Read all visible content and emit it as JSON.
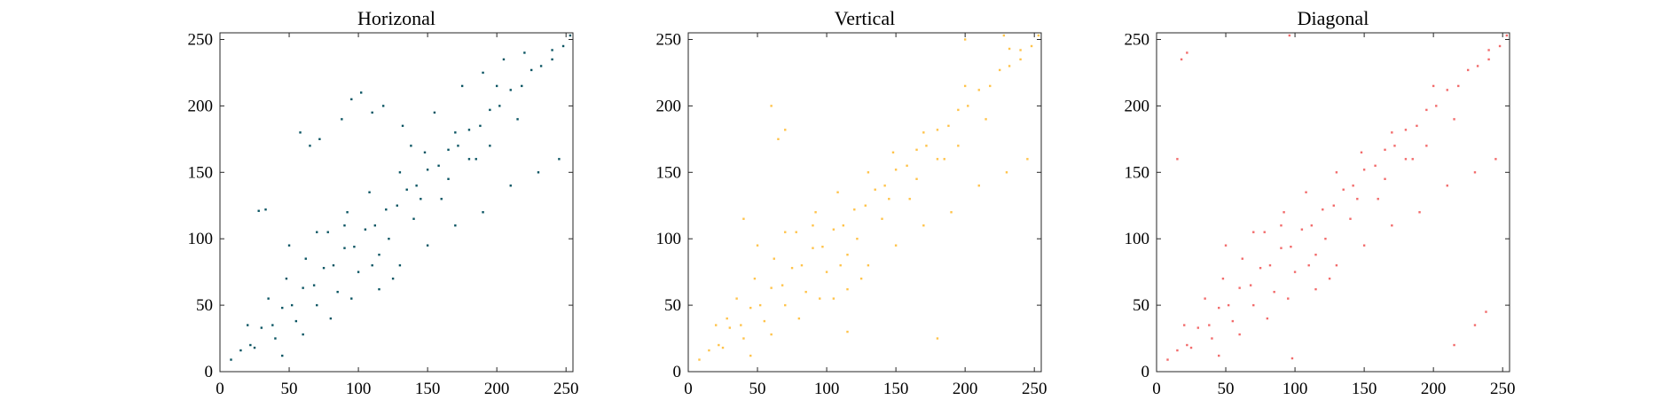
{
  "chart_data": [
    {
      "type": "scatter",
      "title": "Horizonal",
      "color": "#0b5563",
      "xlim": [
        0,
        255
      ],
      "ylim": [
        0,
        255
      ],
      "xticks": [
        0,
        50,
        100,
        150,
        200,
        250
      ],
      "yticks": [
        0,
        50,
        100,
        150,
        200,
        250
      ],
      "grid": false,
      "xlabel": "",
      "ylabel": "",
      "series": [
        {
          "x": [
            8,
            15,
            22,
            30,
            38,
            45,
            52,
            60,
            68,
            75,
            82,
            90,
            97,
            105,
            112,
            120,
            128,
            135,
            142,
            150,
            158,
            165,
            172,
            180,
            188,
            195,
            202,
            210,
            218,
            225,
            232,
            240,
            248,
            253,
            20,
            25,
            35,
            40,
            48,
            55,
            62,
            70,
            78,
            85,
            92,
            100,
            108,
            115,
            122,
            130,
            140,
            148,
            160,
            170,
            185,
            200,
            215,
            28,
            33,
            58,
            65,
            72,
            88,
            95,
            102,
            110,
            118,
            132,
            138,
            155,
            175,
            190,
            205,
            220,
            45,
            60,
            80,
            95,
            115,
            130,
            150,
            170,
            190,
            210,
            230,
            245,
            50,
            70,
            90,
            110,
            125,
            145,
            165,
            180,
            195,
            240
          ],
          "y": [
            9,
            16,
            20,
            33,
            35,
            48,
            50,
            63,
            65,
            78,
            80,
            93,
            94,
            107,
            110,
            122,
            125,
            137,
            140,
            152,
            155,
            167,
            170,
            182,
            185,
            197,
            200,
            212,
            215,
            227,
            230,
            242,
            245,
            253,
            35,
            18,
            55,
            25,
            70,
            38,
            85,
            50,
            105,
            60,
            120,
            75,
            135,
            88,
            100,
            150,
            115,
            165,
            130,
            180,
            160,
            215,
            190,
            121,
            122,
            180,
            170,
            175,
            190,
            205,
            210,
            195,
            200,
            185,
            170,
            195,
            215,
            225,
            235,
            240,
            12,
            28,
            40,
            55,
            62,
            80,
            95,
            110,
            120,
            140,
            150,
            160,
            95,
            105,
            110,
            80,
            70,
            130,
            145,
            160,
            170,
            235
          ]
        }
      ]
    },
    {
      "type": "scatter",
      "title": "Vertical",
      "color": "#ffc34a",
      "xlim": [
        0,
        255
      ],
      "ylim": [
        0,
        255
      ],
      "xticks": [
        0,
        50,
        100,
        150,
        200,
        250
      ],
      "yticks": [
        0,
        50,
        100,
        150,
        200,
        250
      ],
      "grid": false,
      "xlabel": "",
      "ylabel": "",
      "series": [
        {
          "x": [
            8,
            15,
            22,
            30,
            38,
            45,
            52,
            60,
            68,
            75,
            82,
            90,
            97,
            105,
            112,
            120,
            128,
            135,
            142,
            150,
            158,
            165,
            172,
            180,
            188,
            195,
            202,
            210,
            218,
            225,
            232,
            240,
            248,
            253,
            20,
            25,
            35,
            40,
            48,
            55,
            62,
            70,
            78,
            85,
            92,
            100,
            108,
            115,
            122,
            130,
            140,
            148,
            160,
            170,
            185,
            200,
            215,
            28,
            40,
            60,
            65,
            70,
            105,
            115,
            180,
            200,
            228,
            232,
            45,
            60,
            80,
            95,
            115,
            130,
            150,
            170,
            190,
            210,
            230,
            245,
            50,
            70,
            90,
            110,
            125,
            145,
            165,
            180,
            195,
            240
          ],
          "y": [
            9,
            16,
            20,
            33,
            35,
            48,
            50,
            63,
            65,
            78,
            80,
            93,
            94,
            107,
            110,
            122,
            125,
            137,
            140,
            152,
            155,
            167,
            170,
            182,
            185,
            197,
            200,
            212,
            215,
            227,
            230,
            242,
            245,
            253,
            35,
            18,
            55,
            25,
            70,
            38,
            85,
            50,
            105,
            60,
            120,
            75,
            135,
            88,
            100,
            150,
            115,
            165,
            130,
            180,
            160,
            215,
            190,
            40,
            115,
            200,
            175,
            182,
            55,
            30,
            25,
            250,
            253,
            243,
            12,
            28,
            40,
            55,
            62,
            80,
            95,
            110,
            120,
            140,
            150,
            160,
            95,
            105,
            110,
            80,
            70,
            130,
            145,
            160,
            170,
            235
          ]
        }
      ]
    },
    {
      "type": "scatter",
      "title": "Diagonal",
      "color": "#f26b6b",
      "xlim": [
        0,
        255
      ],
      "ylim": [
        0,
        255
      ],
      "xticks": [
        0,
        50,
        100,
        150,
        200,
        250
      ],
      "yticks": [
        0,
        50,
        100,
        150,
        200,
        250
      ],
      "grid": false,
      "xlabel": "",
      "ylabel": "",
      "series": [
        {
          "x": [
            8,
            15,
            22,
            30,
            38,
            45,
            52,
            60,
            68,
            75,
            82,
            90,
            97,
            105,
            112,
            120,
            128,
            135,
            142,
            150,
            158,
            165,
            172,
            180,
            188,
            195,
            202,
            210,
            218,
            225,
            232,
            240,
            248,
            253,
            20,
            25,
            35,
            40,
            48,
            55,
            62,
            70,
            78,
            85,
            92,
            100,
            108,
            115,
            122,
            130,
            140,
            148,
            160,
            170,
            185,
            200,
            215,
            15,
            18,
            22,
            96,
            98,
            215,
            230,
            238,
            45,
            60,
            80,
            95,
            115,
            130,
            150,
            170,
            190,
            210,
            230,
            245,
            50,
            70,
            90,
            110,
            125,
            145,
            165,
            180,
            195,
            240
          ],
          "y": [
            9,
            16,
            20,
            33,
            35,
            48,
            50,
            63,
            65,
            78,
            80,
            93,
            94,
            107,
            110,
            122,
            125,
            137,
            140,
            152,
            155,
            167,
            170,
            182,
            185,
            197,
            200,
            212,
            215,
            227,
            230,
            242,
            245,
            253,
            35,
            18,
            55,
            25,
            70,
            38,
            85,
            50,
            105,
            60,
            120,
            75,
            135,
            88,
            100,
            150,
            115,
            165,
            130,
            180,
            160,
            215,
            190,
            160,
            235,
            240,
            253,
            10,
            20,
            35,
            45,
            12,
            28,
            40,
            55,
            62,
            80,
            95,
            110,
            120,
            140,
            150,
            160,
            95,
            105,
            110,
            80,
            70,
            130,
            145,
            160,
            170,
            235
          ]
        }
      ]
    }
  ]
}
